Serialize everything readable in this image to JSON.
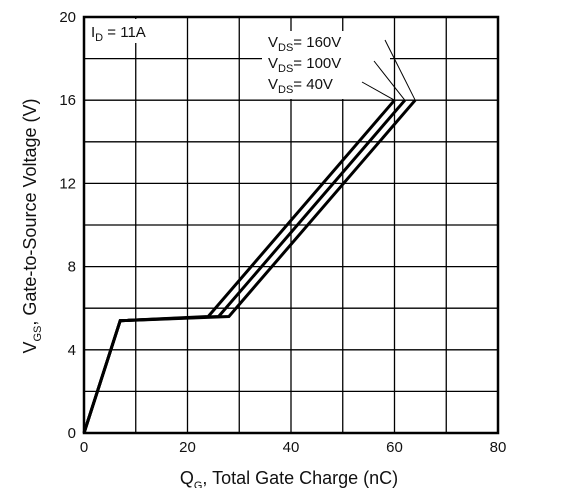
{
  "chart_data": {
    "type": "line",
    "xlabel": {
      "main": "Q",
      "sub": "G",
      "rest": ", Total Gate Charge (nC)"
    },
    "ylabel": {
      "main": "V",
      "sub": "GS",
      "rest": ", Gate-to-Source Voltage (V)"
    },
    "xlim": [
      0,
      80
    ],
    "ylim": [
      0,
      20
    ],
    "x_ticks": [
      0,
      20,
      40,
      60,
      80
    ],
    "y_ticks": [
      0,
      4,
      8,
      12,
      16,
      20
    ],
    "grid": true,
    "condition": {
      "main": "I",
      "sub": "D",
      "rest": " = 11A"
    },
    "series": [
      {
        "legend": {
          "main": "V",
          "sub": "DS",
          "rest": "= 160V"
        },
        "points": [
          [
            0,
            0
          ],
          [
            7,
            5.4
          ],
          [
            28,
            5.6
          ],
          [
            64,
            16
          ]
        ]
      },
      {
        "legend": {
          "main": "V",
          "sub": "DS",
          "rest": "= 100V"
        },
        "points": [
          [
            0,
            0
          ],
          [
            7,
            5.4
          ],
          [
            26,
            5.6
          ],
          [
            62,
            16
          ]
        ]
      },
      {
        "legend": {
          "main": "V",
          "sub": "DS",
          "rest": "= 40V"
        },
        "points": [
          [
            0,
            0
          ],
          [
            7,
            5.4
          ],
          [
            24,
            5.6
          ],
          [
            60,
            16
          ]
        ]
      }
    ]
  }
}
